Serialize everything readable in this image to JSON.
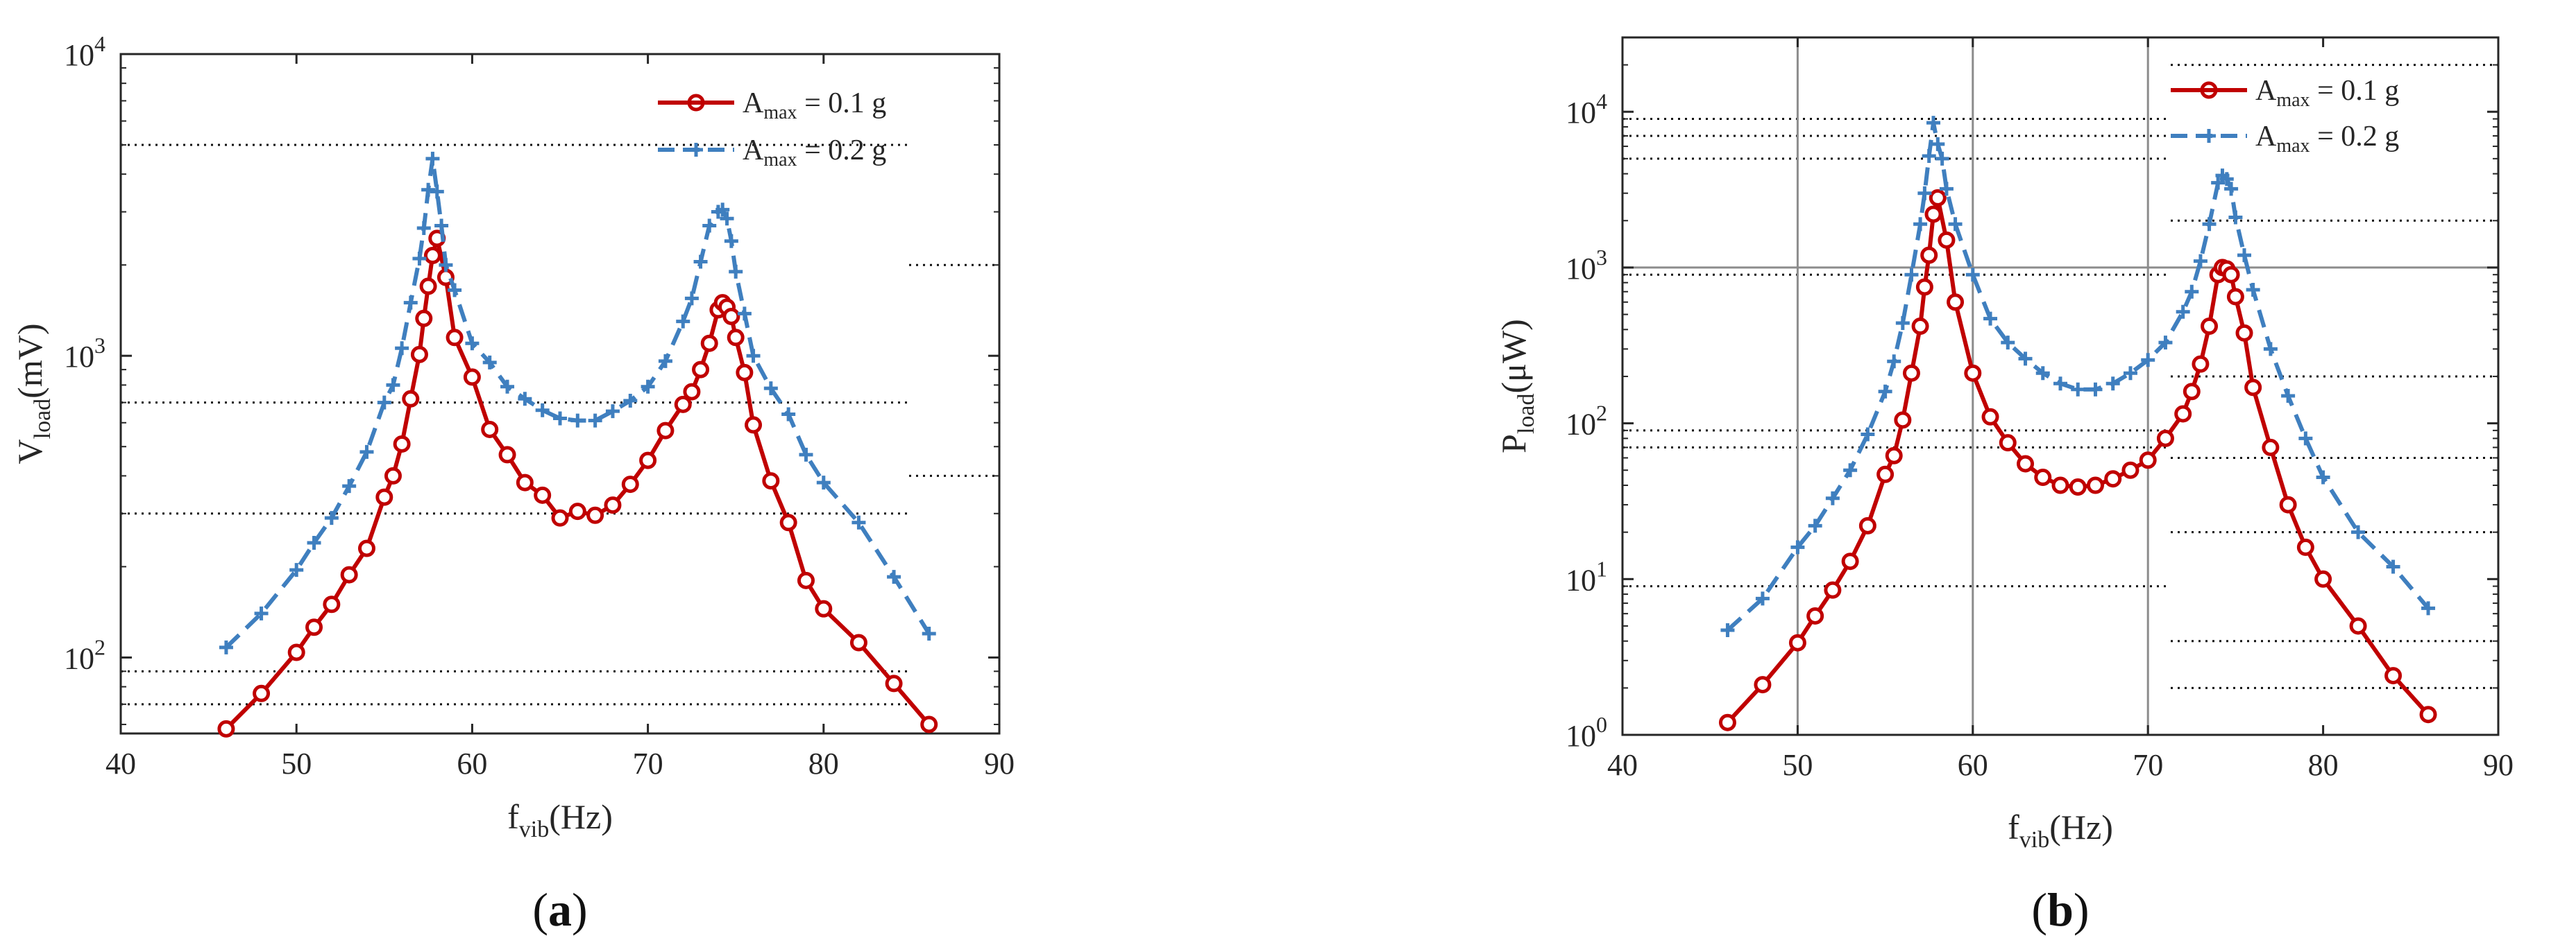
{
  "figure": {
    "panel_a_caption": {
      "open": "(",
      "letter": "a",
      "close": ")"
    },
    "panel_b_caption": {
      "open": "(",
      "letter": "b",
      "close": ")"
    }
  },
  "colors": {
    "red": "#c00000",
    "blue": "#3f7fbf",
    "axis": "#262626"
  },
  "chart_data": [
    {
      "id": "a",
      "type": "line",
      "yscale": "log",
      "xlabel_main": "f",
      "xlabel_sub": "vib",
      "xlabel_unit": "(Hz)",
      "ylabel_main": "V",
      "ylabel_sub": "load",
      "ylabel_unit": "(mV)",
      "xlim": [
        40,
        90
      ],
      "ylim": [
        56,
        10000
      ],
      "xticks": [
        40,
        50,
        60,
        70,
        80,
        90
      ],
      "yticks": [
        {
          "value": 100,
          "base": "10",
          "exp": "2"
        },
        {
          "value": 1000,
          "base": "10",
          "exp": "3"
        },
        {
          "value": 10000,
          "base": "10",
          "exp": "4"
        }
      ],
      "grid": "dotted reference lines",
      "legend_position": "top-right",
      "series": [
        {
          "name_main": "A",
          "name_sub": "max",
          "name_rest": " = 0.1 g",
          "color": "#c00000",
          "marker": "circle",
          "line": "solid",
          "x": [
            46,
            48,
            50,
            51,
            52,
            53,
            54,
            55,
            55.5,
            56,
            56.5,
            57,
            57.25,
            57.5,
            57.75,
            58,
            58.5,
            59,
            60,
            61,
            62,
            63,
            64,
            65,
            66,
            67,
            68,
            69,
            70,
            71,
            72,
            72.5,
            73,
            73.5,
            74,
            74.25,
            74.5,
            74.75,
            75,
            75.5,
            76,
            77,
            78,
            79,
            80,
            82,
            84,
            86
          ],
          "y": [
            58,
            76,
            104,
            126,
            150,
            188,
            230,
            340,
            400,
            510,
            720,
            1010,
            1330,
            1700,
            2150,
            2450,
            1820,
            1150,
            850,
            570,
            470,
            380,
            345,
            290,
            305,
            296,
            320,
            375,
            450,
            565,
            690,
            760,
            900,
            1100,
            1420,
            1500,
            1450,
            1350,
            1150,
            880,
            590,
            385,
            280,
            180,
            145,
            112,
            82,
            60
          ]
        },
        {
          "name_main": "A",
          "name_sub": "max",
          "name_rest": " = 0.2 g",
          "color": "#3f7fbf",
          "marker": "plus",
          "line": "dashed",
          "x": [
            46,
            48,
            50,
            51,
            52,
            53,
            54,
            55,
            55.5,
            56,
            56.5,
            57,
            57.25,
            57.5,
            57.75,
            58,
            58.25,
            58.5,
            59,
            60,
            61,
            62,
            63,
            64,
            65,
            66,
            67,
            68,
            69,
            70,
            71,
            72,
            72.5,
            73,
            73.5,
            74,
            74.25,
            74.5,
            74.75,
            75,
            75.5,
            76,
            77,
            78,
            79,
            80,
            82,
            84,
            86
          ],
          "y": [
            108,
            140,
            195,
            240,
            290,
            370,
            480,
            700,
            800,
            1060,
            1500,
            2100,
            2650,
            3550,
            4500,
            3500,
            2700,
            2000,
            1650,
            1100,
            950,
            790,
            720,
            660,
            620,
            610,
            610,
            655,
            710,
            790,
            960,
            1300,
            1550,
            2050,
            2700,
            3000,
            3050,
            2850,
            2400,
            1900,
            1380,
            1000,
            780,
            640,
            470,
            380,
            280,
            185,
            120
          ]
        }
      ],
      "reference_lines_y": [
        5000,
        700,
        300,
        90,
        70
      ],
      "right_stub_lines_y": [
        2000,
        400
      ]
    },
    {
      "id": "b",
      "type": "line",
      "yscale": "log",
      "xlabel_main": "f",
      "xlabel_sub": "vib",
      "xlabel_unit": "(Hz)",
      "ylabel_main": "P",
      "ylabel_sub": "load",
      "ylabel_unit": "(μW)",
      "xlim": [
        40,
        90
      ],
      "ylim": [
        1,
        30000
      ],
      "xticks": [
        40,
        50,
        60,
        70,
        80,
        90
      ],
      "yticks": [
        {
          "value": 1,
          "base": "10",
          "exp": "0"
        },
        {
          "value": 10,
          "base": "10",
          "exp": "1"
        },
        {
          "value": 100,
          "base": "10",
          "exp": "2"
        },
        {
          "value": 1000,
          "base": "10",
          "exp": "3"
        },
        {
          "value": 10000,
          "base": "10",
          "exp": "4"
        }
      ],
      "grid": "solid grey lines at 50, 60, 70 Hz and at 1000 μW",
      "legend_position": "top-right",
      "series": [
        {
          "name_main": "A",
          "name_sub": "max",
          "name_rest": " = 0.1 g",
          "color": "#c00000",
          "marker": "circle",
          "line": "solid",
          "x": [
            46,
            48,
            50,
            51,
            52,
            53,
            54,
            55,
            55.5,
            56,
            56.5,
            57,
            57.25,
            57.5,
            57.75,
            58,
            58.5,
            59,
            60,
            61,
            62,
            63,
            64,
            65,
            66,
            67,
            68,
            69,
            70,
            71,
            72,
            72.5,
            73,
            73.5,
            74,
            74.25,
            74.5,
            74.75,
            75,
            75.5,
            76,
            77,
            78,
            79,
            80,
            82,
            84,
            86
          ],
          "y": [
            1.2,
            2.1,
            3.9,
            5.8,
            8.5,
            13,
            22,
            47,
            62,
            105,
            210,
            420,
            750,
            1200,
            2200,
            2800,
            1500,
            600,
            210,
            110,
            75,
            55,
            45,
            40,
            39,
            40,
            44,
            50,
            58,
            80,
            115,
            160,
            240,
            420,
            900,
            1000,
            980,
            900,
            650,
            380,
            170,
            70,
            30,
            16,
            10,
            5,
            2.4,
            1.35
          ]
        },
        {
          "name_main": "A",
          "name_sub": "max",
          "name_rest": " = 0.2 g",
          "color": "#3f7fbf",
          "marker": "plus",
          "line": "dashed",
          "x": [
            46,
            48,
            50,
            51,
            52,
            53,
            54,
            55,
            55.5,
            56,
            56.5,
            57,
            57.25,
            57.5,
            57.75,
            58,
            58.25,
            58.5,
            59,
            60,
            61,
            62,
            63,
            64,
            65,
            66,
            67,
            68,
            69,
            70,
            71,
            72,
            72.5,
            73,
            73.5,
            74,
            74.25,
            74.5,
            74.75,
            75,
            75.5,
            76,
            77,
            78,
            79,
            80,
            82,
            84,
            86
          ],
          "y": [
            4.7,
            7.5,
            16,
            22,
            33,
            50,
            85,
            160,
            250,
            440,
            900,
            1900,
            3000,
            5200,
            8500,
            6200,
            5000,
            3200,
            1900,
            900,
            470,
            330,
            260,
            210,
            180,
            165,
            165,
            180,
            210,
            255,
            330,
            520,
            700,
            1100,
            1900,
            3500,
            3900,
            3700,
            3200,
            2100,
            1200,
            720,
            300,
            150,
            80,
            45,
            20,
            12,
            6.5
          ]
        }
      ],
      "reference_lines_y": [
        9000,
        7000,
        5000,
        900,
        90,
        70,
        9
      ],
      "right_stub_lines_y": [
        20000,
        2000,
        200,
        60,
        20,
        4,
        2
      ]
    }
  ]
}
